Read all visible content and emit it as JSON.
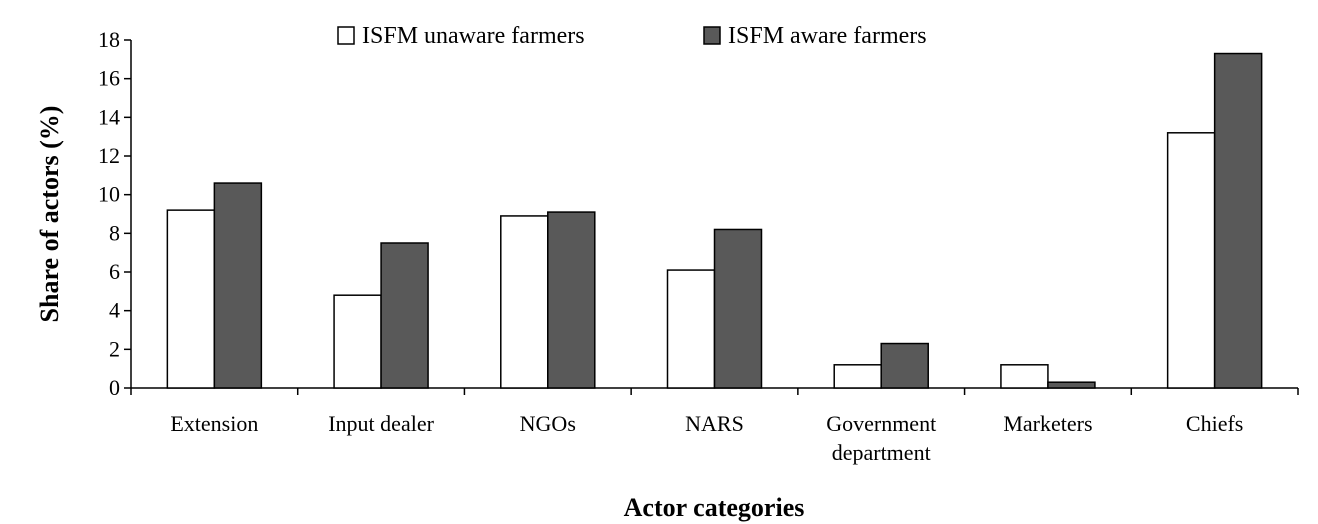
{
  "chart_data": {
    "type": "bar",
    "title": "",
    "xlabel": "Actor categories",
    "ylabel": "Share of actors (%)",
    "ylim": [
      0,
      18
    ],
    "yticks": [
      0,
      2,
      4,
      6,
      8,
      10,
      12,
      14,
      16,
      18
    ],
    "grid": false,
    "legend_position": "top",
    "categories": [
      [
        "Extension"
      ],
      [
        "Input dealer"
      ],
      [
        "NGOs"
      ],
      [
        "NARS"
      ],
      [
        "Government",
        "department"
      ],
      [
        "Marketers"
      ],
      [
        "Chiefs"
      ]
    ],
    "series": [
      {
        "name": "ISFM unaware farmers",
        "color": "#ffffff",
        "values": [
          9.2,
          4.8,
          8.9,
          6.1,
          1.2,
          1.2,
          13.2
        ]
      },
      {
        "name": "ISFM aware farmers",
        "color": "#595959",
        "values": [
          10.6,
          7.5,
          9.1,
          8.2,
          2.3,
          0.3,
          17.3
        ]
      }
    ]
  }
}
